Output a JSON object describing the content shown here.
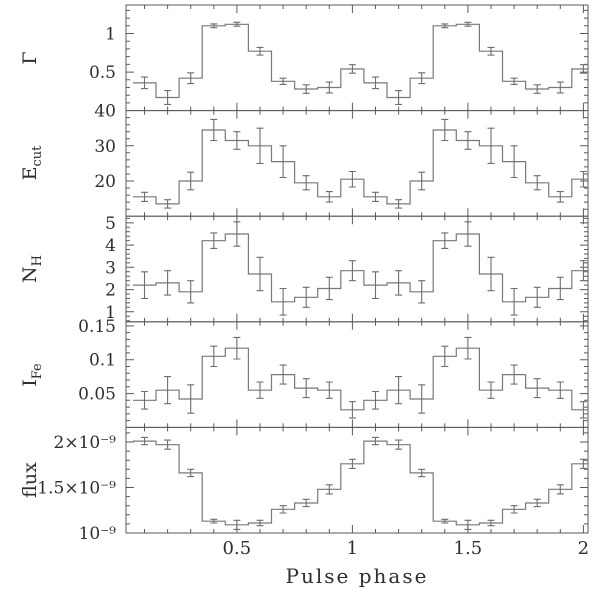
{
  "figure": {
    "background": "#ffffff",
    "description": "Five stacked phase-resolved spectral parameter panels sharing one pulse-phase axis"
  },
  "colors": {
    "frame": "#5a5a5a",
    "data_line": "#787878",
    "error_bar": "#6e6e6e",
    "text": "#2e2e2e",
    "background": "#ffffff"
  },
  "chart_data": {
    "type": "line",
    "style": "step-histogram-with-errorbars",
    "xlabel": "Pulse phase",
    "xlim": [
      0.02,
      2.02
    ],
    "x_major_ticks": [
      0.5,
      1.0,
      1.5,
      2.0
    ],
    "x_major_tick_labels": [
      "0.5",
      "1",
      "1.5",
      "2"
    ],
    "x_minor_step": 0.1,
    "bin_width": 0.1,
    "bin_centers_per_period": [
      0.1,
      0.2,
      0.3,
      0.4,
      0.5,
      0.6,
      0.7,
      0.8,
      0.9,
      1.0
    ],
    "periods_shown": 2,
    "panels": [
      {
        "name": "gamma",
        "label_main": "Γ",
        "label_sub": "",
        "ylim": [
          0.0,
          1.37
        ],
        "yticks": [
          0.5,
          1.0
        ],
        "ytick_labels": [
          "0.5",
          "1"
        ],
        "y_minor_step": 0.1,
        "values": [
          0.36,
          0.17,
          0.42,
          1.1,
          1.12,
          0.77,
          0.38,
          0.28,
          0.3,
          0.54
        ],
        "errors": [
          0.075,
          0.09,
          0.07,
          0.025,
          0.025,
          0.05,
          0.04,
          0.055,
          0.07,
          0.055
        ]
      },
      {
        "name": "ecut",
        "label_main": "E",
        "label_sub": "cut",
        "ylim": [
          10,
          40
        ],
        "yticks": [
          20,
          30,
          40
        ],
        "ytick_labels": [
          "20",
          "30",
          "40"
        ],
        "y_minor_step": 2,
        "values": [
          15.5,
          13.5,
          20.0,
          34.5,
          31.5,
          30.0,
          25.5,
          19.5,
          15.5,
          20.5
        ],
        "errors": [
          1.3,
          1.2,
          2.5,
          3.0,
          2.5,
          5.0,
          4.5,
          2.0,
          1.5,
          2.2
        ]
      },
      {
        "name": "nh",
        "label_main": "N",
        "label_sub": "H",
        "ylim": [
          0.55,
          5.3
        ],
        "yticks": [
          1,
          2,
          3,
          4,
          5
        ],
        "ytick_labels": [
          "1",
          "2",
          "3",
          "4",
          "5"
        ],
        "y_minor_step": 0.2,
        "values": [
          2.2,
          2.3,
          1.9,
          4.2,
          4.5,
          2.7,
          1.45,
          1.65,
          2.05,
          2.85
        ],
        "errors": [
          0.6,
          0.55,
          0.5,
          0.35,
          0.55,
          0.75,
          0.6,
          0.45,
          0.5,
          0.45
        ]
      },
      {
        "name": "ife",
        "label_main": "I",
        "label_sub": "Fe",
        "ylim": [
          0.0,
          0.156
        ],
        "yticks": [
          0.05,
          0.1,
          0.15
        ],
        "ytick_labels": [
          "0.05",
          "0.1",
          "0.15"
        ],
        "y_minor_step": 0.01,
        "values": [
          0.04,
          0.055,
          0.042,
          0.105,
          0.117,
          0.055,
          0.078,
          0.058,
          0.055,
          0.026
        ],
        "errors": [
          0.013,
          0.02,
          0.021,
          0.015,
          0.016,
          0.012,
          0.014,
          0.014,
          0.012,
          0.012
        ]
      },
      {
        "name": "flux",
        "label_main": "flux",
        "label_sub": "",
        "ylim": [
          1.0,
          2.16
        ],
        "yticks": [
          1.0,
          1.5,
          2.0
        ],
        "ytick_labels": [
          "10⁻⁹",
          "1.5×10⁻⁹",
          "2×10⁻⁹"
        ],
        "y_minor_step": 0.1,
        "values": [
          2.01,
          1.97,
          1.66,
          1.13,
          1.09,
          1.11,
          1.26,
          1.33,
          1.48,
          1.76
        ],
        "errors": [
          0.04,
          0.05,
          0.04,
          0.02,
          0.05,
          0.03,
          0.04,
          0.04,
          0.05,
          0.05
        ]
      }
    ]
  }
}
